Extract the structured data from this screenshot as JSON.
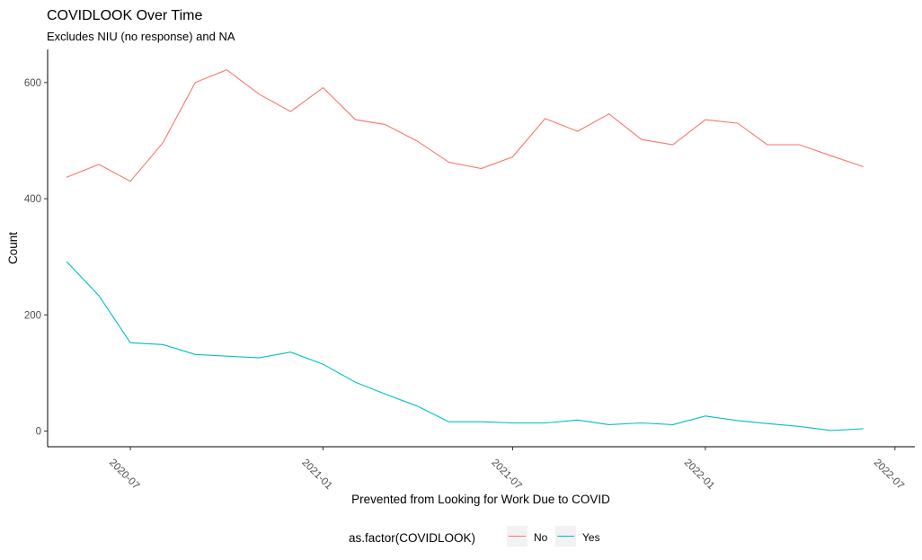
{
  "chart_data": {
    "type": "line",
    "title": "COVIDLOOK Over Time",
    "subtitle": "Excludes NIU (no response) and NA",
    "xlabel": "Prevented from Looking for Work Due to COVID",
    "ylabel": "Count",
    "x_ticks": [
      "2020-07",
      "2021-01",
      "2021-07",
      "2022-01",
      "2022-07"
    ],
    "y_ticks": [
      0,
      200,
      400,
      600
    ],
    "xlim": [
      "2020-04-13",
      "2022-07-20"
    ],
    "ylim": [
      -27,
      657
    ],
    "grid": false,
    "legend": {
      "title": "as.factor(COVIDLOOK)",
      "position": "bottom"
    },
    "x": [
      "2020-05",
      "2020-06",
      "2020-07",
      "2020-08",
      "2020-09",
      "2020-10",
      "2020-11",
      "2020-12",
      "2021-01",
      "2021-02",
      "2021-03",
      "2021-04",
      "2021-05",
      "2021-06",
      "2021-07",
      "2021-08",
      "2021-09",
      "2021-10",
      "2021-11",
      "2021-12",
      "2022-01",
      "2022-02",
      "2022-03",
      "2022-04",
      "2022-05",
      "2022-06"
    ],
    "series": [
      {
        "name": "No",
        "color": "#F8766D",
        "values": [
          437,
          459,
          430,
          496,
          600,
          622,
          580,
          550,
          591,
          536,
          528,
          499,
          463,
          452,
          472,
          538,
          516,
          546,
          502,
          493,
          536,
          530,
          493,
          493,
          474,
          455
        ]
      },
      {
        "name": "Yes",
        "color": "#00BFC4",
        "values": [
          292,
          233,
          152,
          149,
          132,
          129,
          126,
          136,
          115,
          84,
          64,
          43,
          16,
          16,
          14,
          14,
          19,
          11,
          14,
          11,
          26,
          18,
          13,
          8,
          1,
          4
        ]
      }
    ]
  }
}
